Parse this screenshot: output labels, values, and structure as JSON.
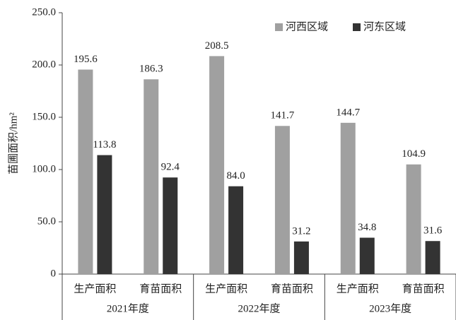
{
  "chart_data": {
    "type": "bar",
    "y_label": "苗圃面积/hm²",
    "categories": [
      "生产面积",
      "育苗面积",
      "生产面积",
      "育苗面积",
      "生产面积",
      "育苗面积"
    ],
    "category_groups": [
      "2021年度",
      "2022年度",
      "2023年度"
    ],
    "series": [
      {
        "name": "河西区域",
        "color": "#a0a0a0",
        "values": [
          195.6,
          186.3,
          208.5,
          141.7,
          144.7,
          104.9
        ],
        "value_labels": [
          "195.6",
          "186.3",
          "208.5",
          "141.7",
          "144.7",
          "104.9"
        ]
      },
      {
        "name": "河东区域",
        "color": "#333333",
        "values": [
          113.8,
          92.4,
          84,
          31.2,
          34.8,
          31.6
        ],
        "value_labels": [
          "113.8",
          "92.4",
          "84.0",
          "31.2",
          "34.8",
          "31.6"
        ]
      }
    ],
    "ylim": [
      0,
      250
    ],
    "yticks": [
      0,
      {
        "value": 50,
        "label": "50.0"
      },
      {
        "value": 100,
        "label": "100.0"
      },
      {
        "value": 150,
        "label": "150.0"
      },
      {
        "value": 200,
        "label": "200.0"
      },
      {
        "value": 250,
        "label": "250.0"
      }
    ],
    "grid": false,
    "legend": "top-right"
  }
}
